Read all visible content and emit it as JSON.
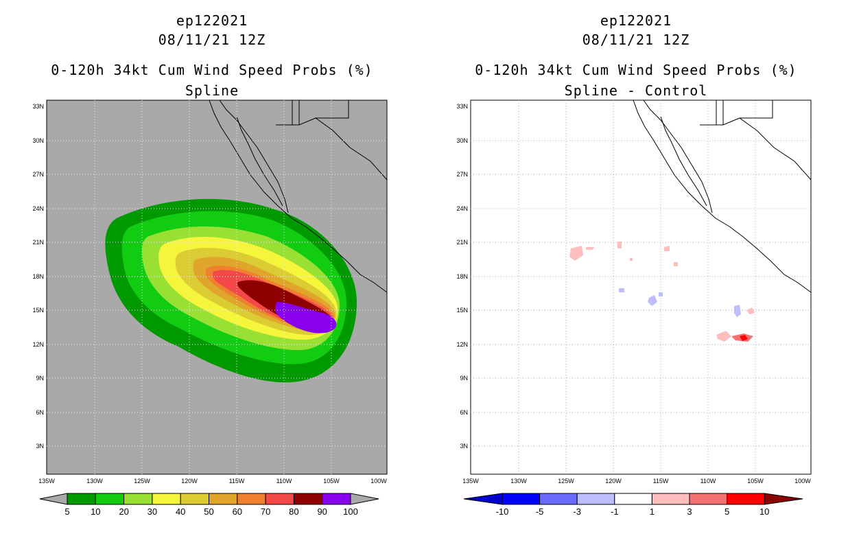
{
  "panels": [
    {
      "storm_id": "ep122021",
      "datetime": "08/11/21 12Z",
      "product": "0-120h 34kt Cum Wind Speed Probs (%)",
      "subtitle": "Spline",
      "background": "#a9a9a9",
      "lat_labels": [
        "33N",
        "30N",
        "27N",
        "24N",
        "21N",
        "18N",
        "15N",
        "12N",
        "9N",
        "6N",
        "3N"
      ],
      "lon_labels": [
        "135W",
        "130W",
        "125W",
        "120W",
        "115W",
        "110W",
        "105W",
        "100W"
      ],
      "colorbar": {
        "colors": [
          "#009900",
          "#11cc11",
          "#99e035",
          "#f5f53c",
          "#dccc33",
          "#e0a62c",
          "#ee8030",
          "#f34848",
          "#8c0000",
          "#8800ee"
        ],
        "labels": [
          "5",
          "10",
          "20",
          "30",
          "40",
          "50",
          "60",
          "70",
          "80",
          "90",
          "100"
        ]
      }
    },
    {
      "storm_id": "ep122021",
      "datetime": "08/11/21 12Z",
      "product": "0-120h 34kt Cum Wind Speed Probs (%)",
      "subtitle": "Spline - Control",
      "background": "#ffffff",
      "lat_labels": [
        "33N",
        "30N",
        "27N",
        "24N",
        "21N",
        "18N",
        "15N",
        "12N",
        "9N",
        "6N",
        "3N"
      ],
      "lon_labels": [
        "135W",
        "130W",
        "125W",
        "120W",
        "115W",
        "110W",
        "105W",
        "100W"
      ],
      "colorbar": {
        "colors": [
          "#0000cc",
          "#0000ff",
          "#6a6aff",
          "#bebeff",
          "#ffffff",
          "#ffbebe",
          "#f57070",
          "#ff0000",
          "#8c0000"
        ],
        "labels": [
          "-10",
          "-5",
          "-3",
          "-1",
          "1",
          "3",
          "5",
          "10"
        ]
      }
    }
  ]
}
